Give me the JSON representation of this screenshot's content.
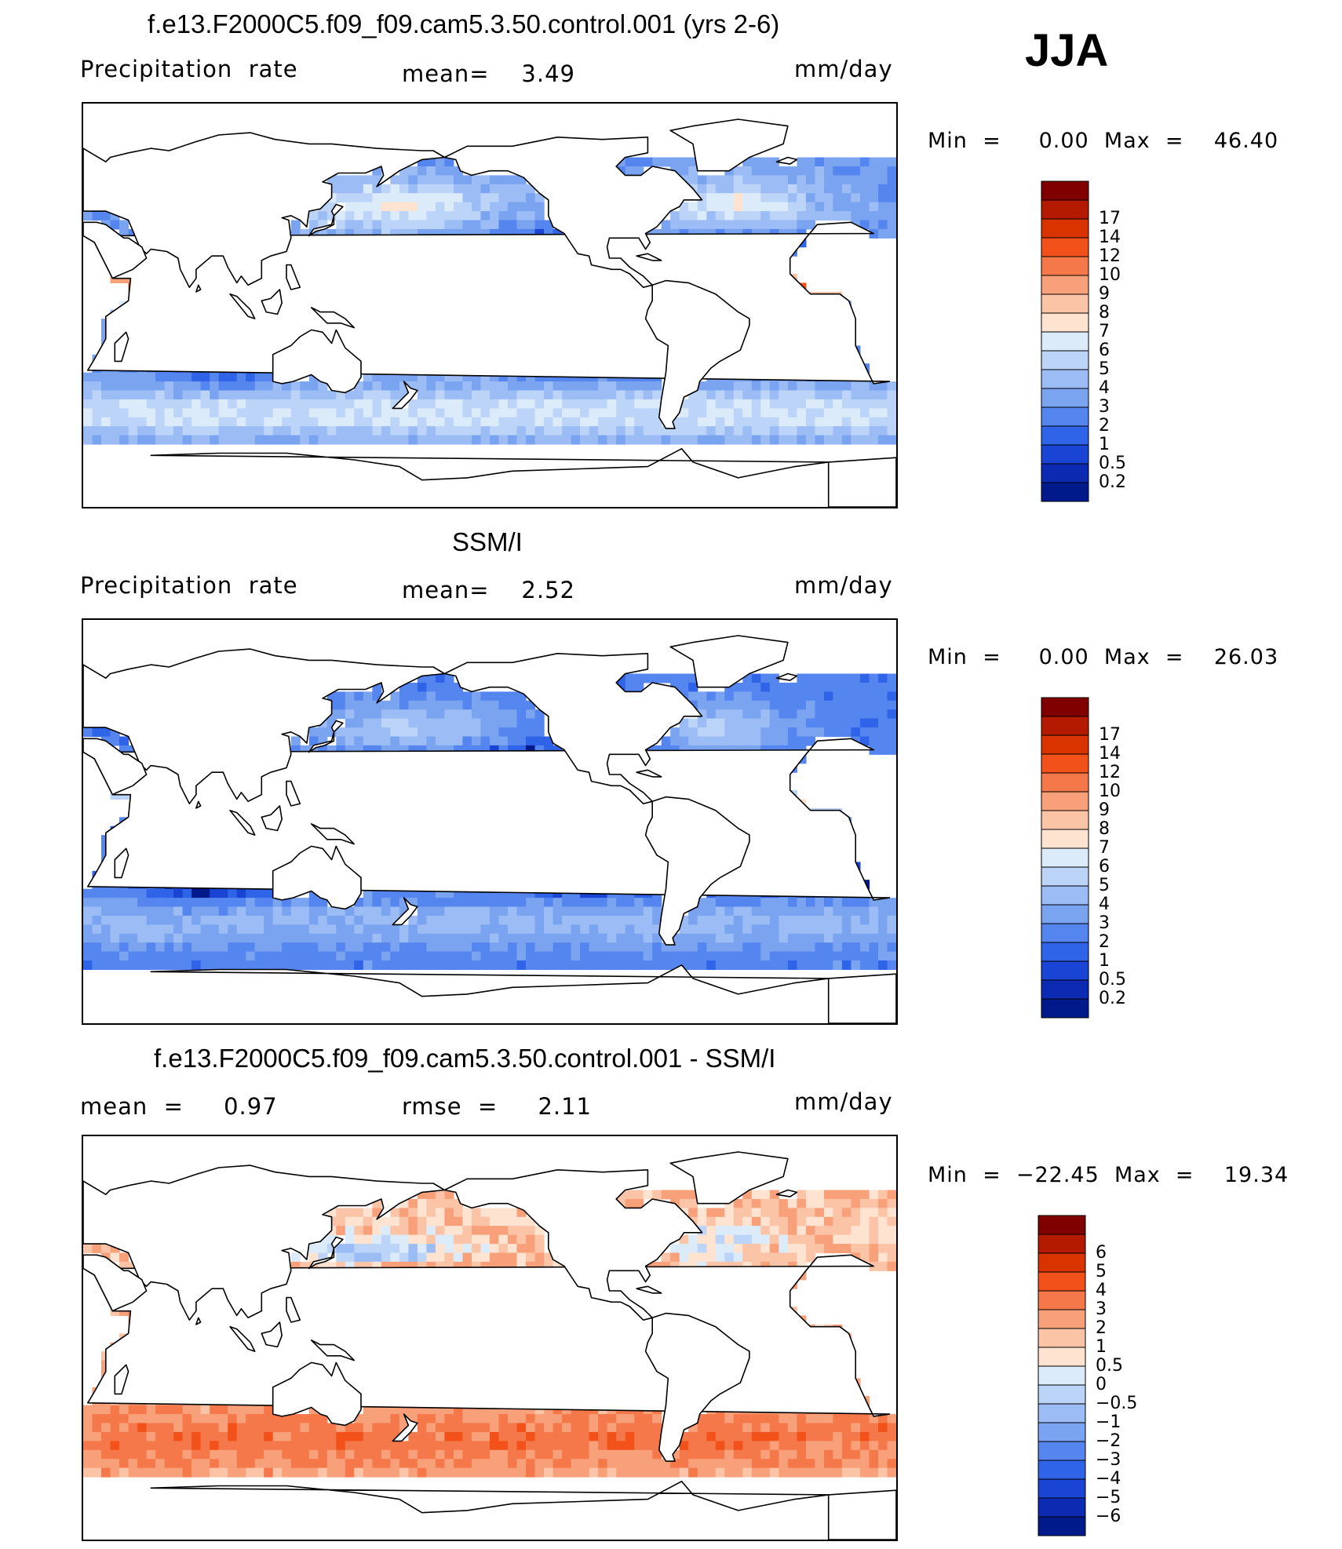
{
  "season": "JJA",
  "panels": [
    {
      "id": "model",
      "title": "f.e13.F2000C5.f09_f09.cam5.3.50.control.001 (yrs 2-6)",
      "left_label": "Precipitation  rate",
      "center_label": "mean=    3.49",
      "units": "mm/day",
      "minmax": "Min  =     0.00  Max  =    46.40",
      "colorbar": {
        "colors": [
          "#800000",
          "#b31a00",
          "#d93300",
          "#f2521a",
          "#f5784a",
          "#f8a07a",
          "#fbc4a7",
          "#fde3d0",
          "#dcebfa",
          "#bcd4f7",
          "#9bbcf4",
          "#7aa3f0",
          "#5585ee",
          "#2f63e8",
          "#1a44d4",
          "#0d2ab3",
          "#001a8c"
        ],
        "labels": [
          "17",
          "14",
          "12",
          "10",
          "9",
          "8",
          "7",
          "6",
          "5",
          "4",
          "3",
          "2",
          "1",
          "0.5",
          "0.2"
        ]
      },
      "field": "model"
    },
    {
      "id": "obs",
      "title": "SSM/I",
      "left_label": "Precipitation  rate",
      "center_label": "mean=    2.52",
      "units": "mm/day",
      "minmax": "Min  =     0.00  Max  =    26.03",
      "colorbar": {
        "colors": [
          "#800000",
          "#b31a00",
          "#d93300",
          "#f2521a",
          "#f5784a",
          "#f8a07a",
          "#fbc4a7",
          "#fde3d0",
          "#dcebfa",
          "#bcd4f7",
          "#9bbcf4",
          "#7aa3f0",
          "#5585ee",
          "#2f63e8",
          "#1a44d4",
          "#0d2ab3",
          "#001a8c"
        ],
        "labels": [
          "17",
          "14",
          "12",
          "10",
          "9",
          "8",
          "7",
          "6",
          "5",
          "4",
          "3",
          "2",
          "1",
          "0.5",
          "0.2"
        ]
      },
      "field": "obs"
    },
    {
      "id": "diff",
      "title": "f.e13.F2000C5.f09_f09.cam5.3.50.control.001 - SSM/I",
      "left_label": "mean  =     0.97",
      "center_label": "rmse  =     2.11",
      "units": "mm/day",
      "minmax": "Min  =  −22.45  Max  =    19.34",
      "colorbar": {
        "colors": [
          "#800000",
          "#b31a00",
          "#d93300",
          "#f2521a",
          "#f5784a",
          "#f8a07a",
          "#fbc4a7",
          "#fde3d0",
          "#dcebfa",
          "#bcd4f7",
          "#9bbcf4",
          "#7aa3f0",
          "#5585ee",
          "#2f63e8",
          "#1a44d4",
          "#0d2ab3",
          "#001a8c"
        ],
        "labels": [
          "6",
          "5",
          "4",
          "3",
          "2",
          "1",
          "0.5",
          "0",
          "−0.5",
          "−1",
          "−2",
          "−3",
          "−4",
          "−5",
          "−6"
        ]
      },
      "field": "diff"
    }
  ],
  "map_features": {
    "projection": "cylindrical equidistant, centered on Pacific",
    "land_fill": "#ffffff",
    "coastline_color": "#000000"
  }
}
